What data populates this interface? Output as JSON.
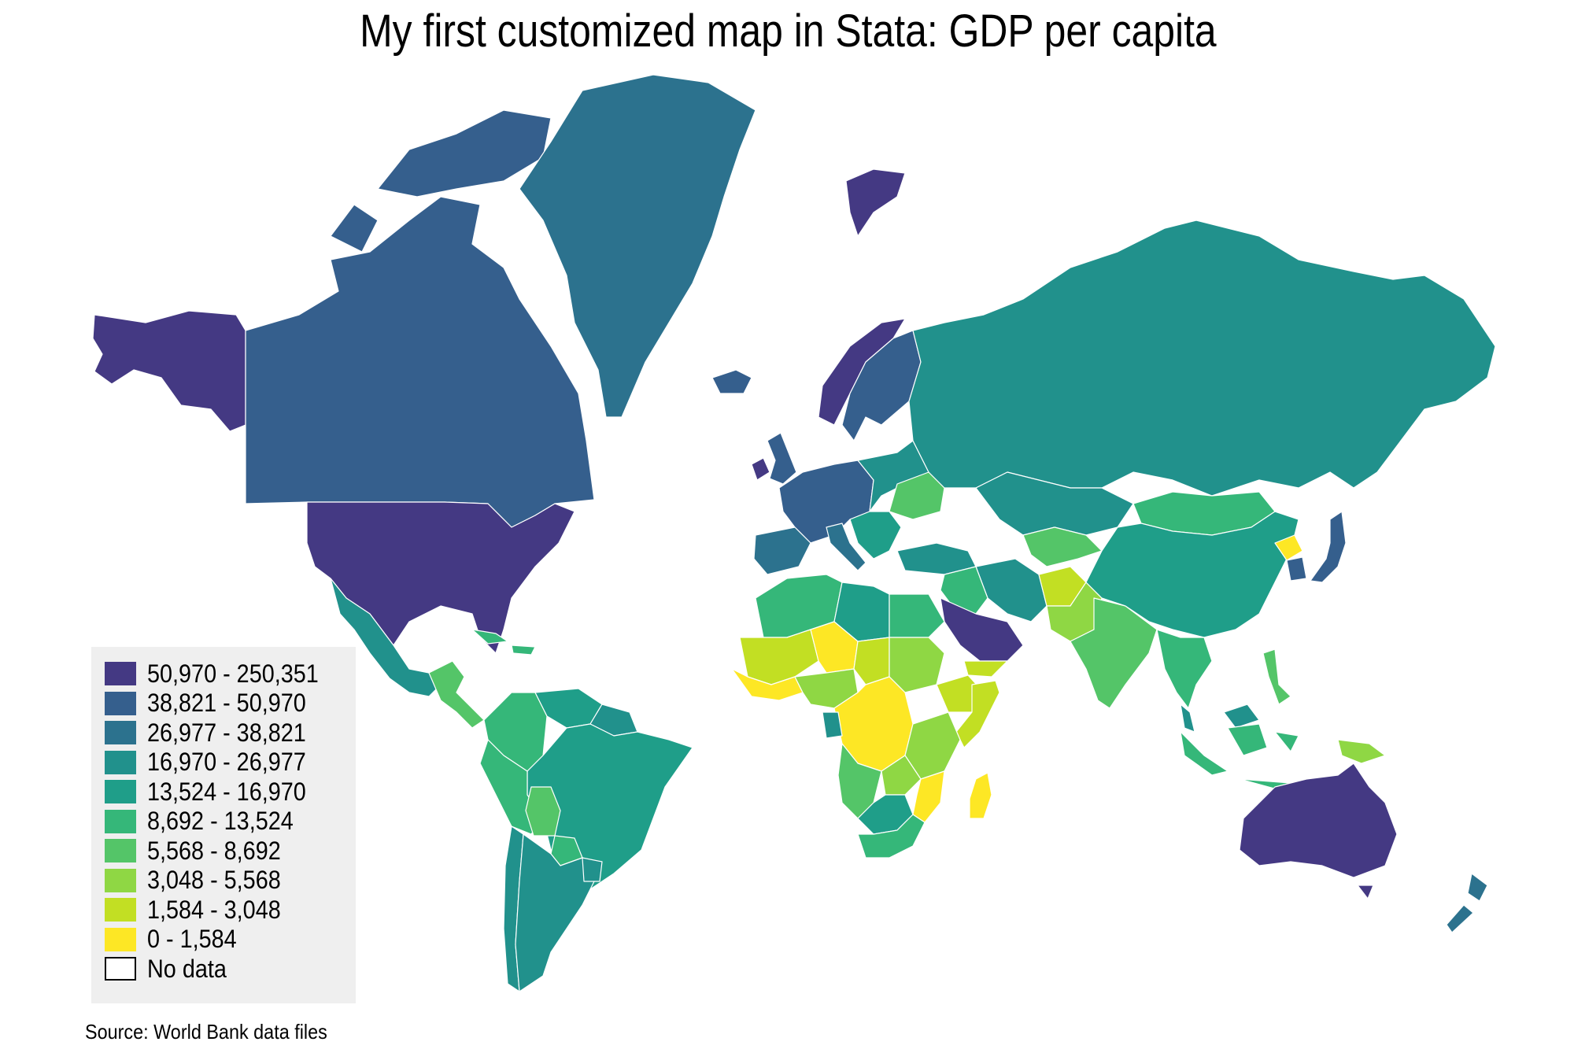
{
  "title": "My first customized map in Stata: GDP per capita",
  "source": "Source: World Bank data files",
  "legend": {
    "items": [
      {
        "label": "50,970 - 250,351",
        "color": "#443983"
      },
      {
        "label": "38,821 - 50,970",
        "color": "#355f8d"
      },
      {
        "label": "26,977 - 38,821",
        "color": "#2c728e"
      },
      {
        "label": "16,970 - 26,977",
        "color": "#21918c"
      },
      {
        "label": "13,524 - 16,970",
        "color": "#1f9e89"
      },
      {
        "label": "8,692 - 13,524",
        "color": "#35b779"
      },
      {
        "label": "5,568 - 8,692",
        "color": "#54c568"
      },
      {
        "label": "3,048 - 5,568",
        "color": "#8fd744"
      },
      {
        "label": "1,584 - 3,048",
        "color": "#c2df23"
      },
      {
        "label": "0 - 1,584",
        "color": "#fde725"
      },
      {
        "label": "No data",
        "color": "#ffffff"
      }
    ]
  },
  "regions": [
    {
      "name": "alaska",
      "bin": 0
    },
    {
      "name": "canada",
      "bin": 1
    },
    {
      "name": "usa",
      "bin": 0
    },
    {
      "name": "mexico",
      "bin": 3
    },
    {
      "name": "central-america",
      "bin": 6
    },
    {
      "name": "caribbean",
      "bin": 5
    },
    {
      "name": "greenland",
      "bin": 2
    },
    {
      "name": "iceland",
      "bin": 1
    },
    {
      "name": "svalbard",
      "bin": 0
    },
    {
      "name": "colombia",
      "bin": 5
    },
    {
      "name": "venezuela",
      "bin": 4
    },
    {
      "name": "guyana-suriname",
      "bin": 3
    },
    {
      "name": "brazil",
      "bin": 4
    },
    {
      "name": "peru",
      "bin": 5
    },
    {
      "name": "bolivia",
      "bin": 6
    },
    {
      "name": "paraguay",
      "bin": 5
    },
    {
      "name": "chile",
      "bin": 3
    },
    {
      "name": "argentina",
      "bin": 3
    },
    {
      "name": "uruguay",
      "bin": 3
    },
    {
      "name": "ireland",
      "bin": 0
    },
    {
      "name": "uk",
      "bin": 1
    },
    {
      "name": "norway",
      "bin": 0
    },
    {
      "name": "sweden-finland",
      "bin": 1
    },
    {
      "name": "western-europe",
      "bin": 1
    },
    {
      "name": "iberia",
      "bin": 2
    },
    {
      "name": "italy",
      "bin": 2
    },
    {
      "name": "eastern-europe",
      "bin": 3
    },
    {
      "name": "ukraine",
      "bin": 6
    },
    {
      "name": "balkans",
      "bin": 4
    },
    {
      "name": "turkey",
      "bin": 3
    },
    {
      "name": "russia",
      "bin": 3
    },
    {
      "name": "kazakhstan",
      "bin": 3
    },
    {
      "name": "central-asia",
      "bin": 6
    },
    {
      "name": "iran",
      "bin": 3
    },
    {
      "name": "iraq-syria",
      "bin": 5
    },
    {
      "name": "saudi-arabia",
      "bin": 0
    },
    {
      "name": "yemen",
      "bin": 8
    },
    {
      "name": "afghanistan",
      "bin": 8
    },
    {
      "name": "pakistan",
      "bin": 7
    },
    {
      "name": "india",
      "bin": 6
    },
    {
      "name": "mongolia",
      "bin": 5
    },
    {
      "name": "china",
      "bin": 4
    },
    {
      "name": "north-korea",
      "bin": 9
    },
    {
      "name": "south-korea",
      "bin": 1
    },
    {
      "name": "japan",
      "bin": 1
    },
    {
      "name": "southeast-asia",
      "bin": 5
    },
    {
      "name": "malaysia",
      "bin": 3
    },
    {
      "name": "indonesia",
      "bin": 5
    },
    {
      "name": "philippines",
      "bin": 6
    },
    {
      "name": "papua-new-guinea",
      "bin": 7
    },
    {
      "name": "australia",
      "bin": 0
    },
    {
      "name": "new-zealand",
      "bin": 2
    },
    {
      "name": "north-africa-west",
      "bin": 5
    },
    {
      "name": "libya",
      "bin": 4
    },
    {
      "name": "egypt",
      "bin": 5
    },
    {
      "name": "sahel-west",
      "bin": 8
    },
    {
      "name": "niger",
      "bin": 9
    },
    {
      "name": "chad",
      "bin": 8
    },
    {
      "name": "sudan",
      "bin": 7
    },
    {
      "name": "west-africa-coast",
      "bin": 9
    },
    {
      "name": "nigeria",
      "bin": 7
    },
    {
      "name": "ethiopia",
      "bin": 8
    },
    {
      "name": "somalia",
      "bin": 8
    },
    {
      "name": "central-africa",
      "bin": 9
    },
    {
      "name": "gabon",
      "bin": 3
    },
    {
      "name": "kenya-tanzania",
      "bin": 7
    },
    {
      "name": "angola",
      "bin": 6
    },
    {
      "name": "zambia",
      "bin": 7
    },
    {
      "name": "mozambique",
      "bin": 9
    },
    {
      "name": "namibia-botswana",
      "bin": 4
    },
    {
      "name": "south-africa",
      "bin": 5
    },
    {
      "name": "madagascar",
      "bin": 9
    }
  ]
}
